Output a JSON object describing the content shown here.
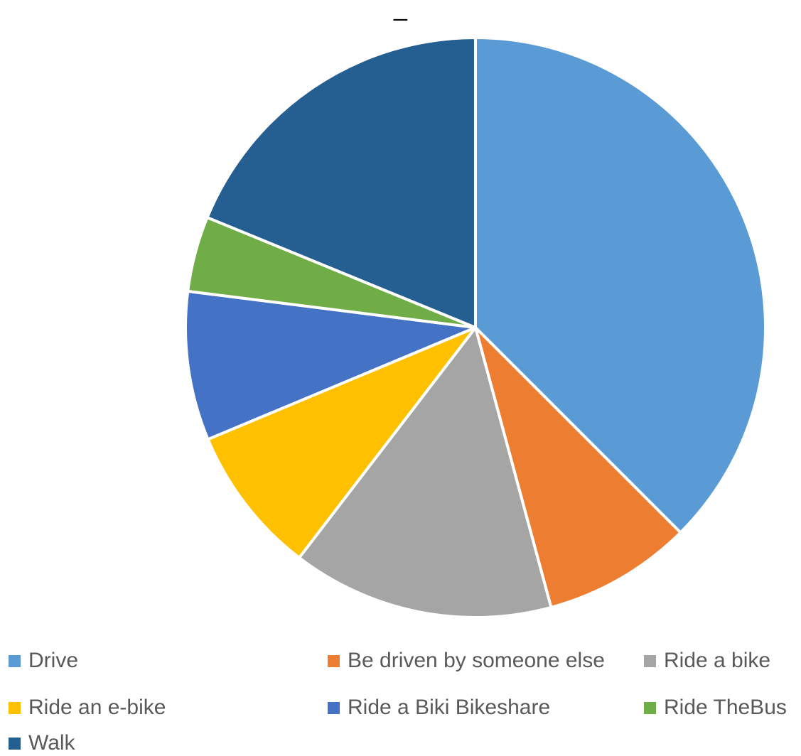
{
  "chart_data": {
    "type": "pie",
    "title": "_",
    "start_angle_deg": 0,
    "direction": "clockwise",
    "legend_position": "bottom",
    "slices": [
      {
        "label": "Drive",
        "value": 37.5,
        "color": "#5B9BD5"
      },
      {
        "label": "Be driven by someone else",
        "value": 8.3,
        "color": "#ED7D31"
      },
      {
        "label": "Ride a bike",
        "value": 14.6,
        "color": "#A5A5A5"
      },
      {
        "label": "Ride an e-bike",
        "value": 8.3,
        "color": "#FFC000"
      },
      {
        "label": "Ride a Biki Bikeshare",
        "value": 8.3,
        "color": "#4472C4"
      },
      {
        "label": "Ride TheBus",
        "value": 4.2,
        "color": "#70AD47"
      },
      {
        "label": "Walk",
        "value": 18.8,
        "color": "#255E91"
      }
    ]
  }
}
